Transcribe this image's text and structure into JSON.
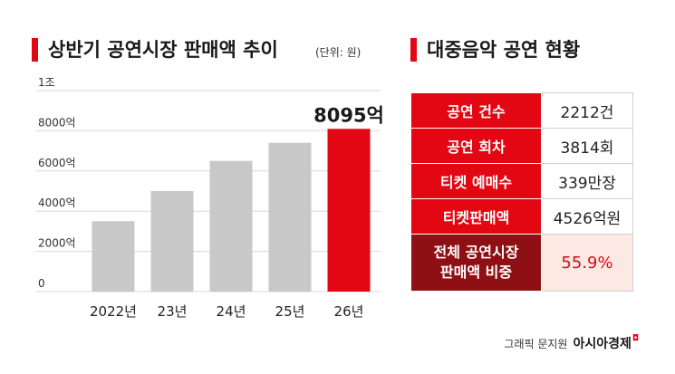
{
  "left_panel": {
    "title": "상반기 공연시장 판매액 추이",
    "unit": "(단위: 원)"
  },
  "right_panel": {
    "title": "대중음악 공연 현황",
    "rows": [
      {
        "label": "공연 건수",
        "value": "2212건"
      },
      {
        "label": "공연 회차",
        "value": "3814회"
      },
      {
        "label": "티켓 예매수",
        "value": "339만장"
      },
      {
        "label": "티켓판매액",
        "value": "4526억원"
      },
      {
        "label_line1": "전체 공연시장",
        "label_line2": "판매액 비중",
        "value": "55.9%"
      }
    ]
  },
  "credit": {
    "graphic": "그래픽 문지원",
    "brand": "아시아경제"
  },
  "colors": {
    "accent": "#e30613",
    "bar_default": "#c8c8c8",
    "highlight_label_bg": "#8e1015",
    "highlight_value_bg": "#fde9e4"
  },
  "chart_data": {
    "type": "bar",
    "title": "상반기 공연시장 판매액 추이",
    "unit": "(단위: 원)",
    "categories": [
      "2022년",
      "23년",
      "24년",
      "25년",
      "26년"
    ],
    "values": [
      3500,
      5000,
      6500,
      7400,
      8095
    ],
    "value_unit": "억",
    "highlight_index": 4,
    "value_labels": [
      "",
      "",
      "",
      "",
      "8095억"
    ],
    "ylim": [
      0,
      10000
    ],
    "yticks": [
      0,
      2000,
      4000,
      6000,
      8000,
      10000
    ],
    "ytick_labels": [
      "0",
      "2000억",
      "4000억",
      "6000억",
      "8000억",
      "1조"
    ],
    "grid": true
  }
}
